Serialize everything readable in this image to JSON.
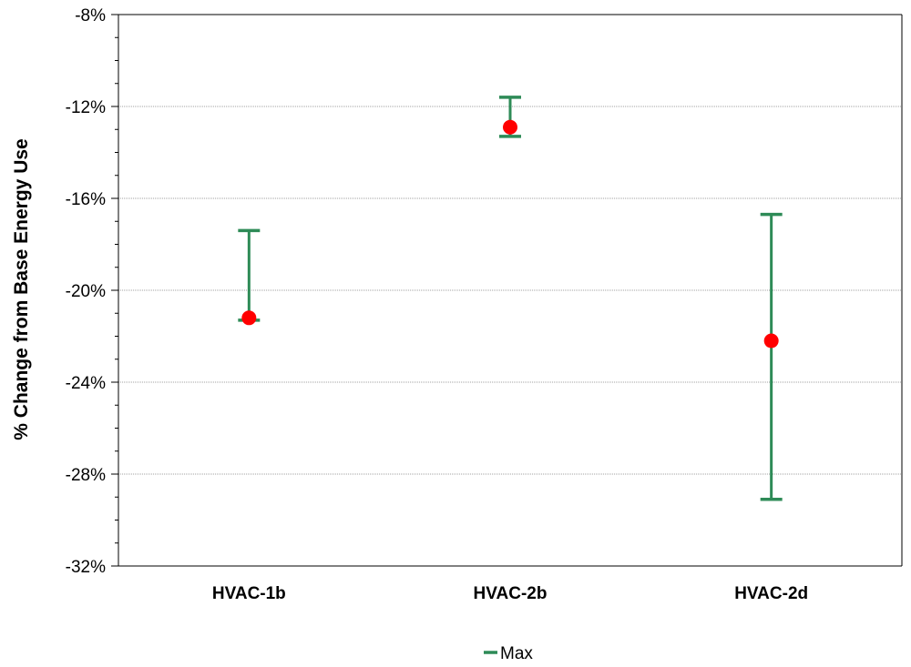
{
  "chart_data": {
    "type": "scatter",
    "title": "",
    "xlabel": "",
    "ylabel": "% Change from Base Energy Use",
    "categories": [
      "HVAC-1b",
      "HVAC-2b",
      "HVAC-2d"
    ],
    "ylim": [
      -32,
      -8
    ],
    "y_ticks": [
      "-8%",
      "-12%",
      "-16%",
      "-20%",
      "-24%",
      "-28%",
      "-32%"
    ],
    "y_tick_values": [
      -8,
      -12,
      -16,
      -20,
      -24,
      -28,
      -32
    ],
    "grid": true,
    "series": [
      {
        "name": "Max",
        "kind": "error-range",
        "low": [
          -21.3,
          -13.3,
          -29.1
        ],
        "high": [
          -17.4,
          -11.6,
          -16.7
        ]
      },
      {
        "kind": "point",
        "values": [
          -21.2,
          -12.9,
          -22.2
        ]
      }
    ],
    "legend": {
      "position": "bottom-center",
      "entries": [
        "Max"
      ]
    },
    "colors": {
      "range": "#2e8b57",
      "point": "#ff0000",
      "grid": "#a0a0a0",
      "axis": "#000000"
    }
  }
}
